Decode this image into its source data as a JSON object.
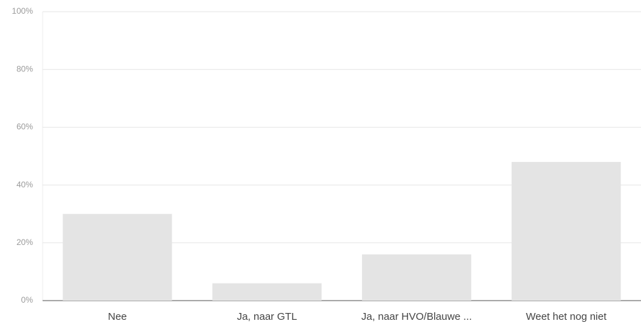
{
  "chart_data": {
    "type": "bar",
    "categories": [
      "Nee",
      "Ja, naar GTL",
      "Ja, naar HVO/Blauwe ...",
      "Weet het nog niet"
    ],
    "values": [
      30,
      6,
      16,
      48
    ],
    "color": "#e4e4e4",
    "ylim": [
      0,
      100
    ],
    "yticks": [
      {
        "value": 0,
        "label": "0%"
      },
      {
        "value": 20,
        "label": "20%"
      },
      {
        "value": 40,
        "label": "40%"
      },
      {
        "value": 60,
        "label": "60%"
      },
      {
        "value": 80,
        "label": "80%"
      },
      {
        "value": 100,
        "label": "100%"
      }
    ],
    "grid": true
  }
}
